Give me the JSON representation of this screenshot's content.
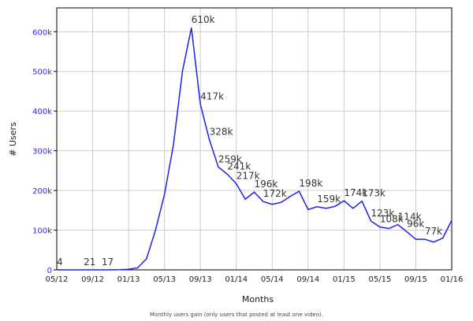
{
  "chart_data": {
    "type": "line",
    "x_label": "Months",
    "y_label": "# Users",
    "caption": "Monthly users gain (only users that posted at least one video).",
    "categories": [
      "05/12",
      null,
      null,
      null,
      "09/12",
      null,
      null,
      null,
      "01/13",
      null,
      null,
      null,
      "05/13",
      null,
      null,
      null,
      "09/13",
      null,
      null,
      null,
      "01/14",
      null,
      null,
      null,
      "05/14",
      null,
      null,
      null,
      "09/14",
      null,
      null,
      null,
      "01/15",
      null,
      null,
      null,
      "05/15",
      null,
      null,
      null,
      "09/15",
      null,
      null,
      null,
      "01/16"
    ],
    "series": [
      {
        "name": "Users",
        "color": "#1f1fe6",
        "values": [
          4,
          10,
          15,
          21,
          18,
          17,
          100,
          500,
          1500,
          5000,
          28000,
          100000,
          190000,
          315000,
          500000,
          610000,
          417000,
          328000,
          259000,
          241000,
          217000,
          178000,
          196000,
          172000,
          165000,
          170000,
          185000,
          198000,
          152000,
          159000,
          155000,
          160000,
          174000,
          155000,
          173000,
          123000,
          108000,
          104000,
          114000,
          96000,
          77000,
          77000,
          70000,
          80000,
          125000
        ],
        "value_labels": [
          "4",
          null,
          null,
          "21",
          null,
          "17",
          null,
          null,
          null,
          null,
          null,
          null,
          null,
          null,
          null,
          "610k",
          "417k",
          "328k",
          "259k",
          "241k",
          "217k",
          null,
          "196k",
          "172k",
          null,
          null,
          null,
          "198k",
          null,
          "159k",
          null,
          null,
          "174k",
          null,
          "173k",
          "123k",
          "108k",
          null,
          "114k",
          "96k",
          null,
          "77k",
          null,
          null,
          null
        ]
      }
    ],
    "ylim": [
      0,
      660000
    ],
    "yticks": [
      0,
      {
        "value": 100000,
        "label": "100k"
      },
      {
        "value": 200000,
        "label": "200k"
      },
      {
        "value": 300000,
        "label": "300k"
      },
      {
        "value": 400000,
        "label": "400k"
      },
      {
        "value": 500000,
        "label": "500k"
      },
      {
        "value": 600000,
        "label": "600k"
      }
    ],
    "grid": true
  }
}
